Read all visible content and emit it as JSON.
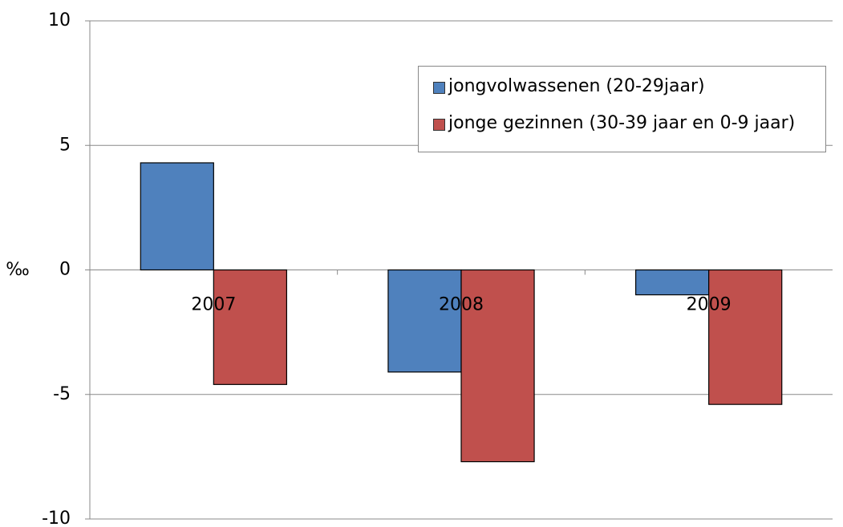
{
  "chart_data": {
    "type": "bar",
    "y_label": "‰",
    "categories": [
      "2007",
      "2008",
      "2009"
    ],
    "series": [
      {
        "name": "jongvolwassenen (20-29jaar)",
        "color": "#4f81bd",
        "values": [
          4.3,
          -4.1,
          -1.0
        ]
      },
      {
        "name": "jonge gezinnen (30-39 jaar en 0-9 jaar)",
        "color": "#c0504d",
        "values": [
          -4.6,
          -7.7,
          -5.4
        ]
      }
    ],
    "ylim": [
      -10,
      10
    ],
    "yticks": [
      -10,
      -5,
      0,
      5,
      10
    ],
    "grid": true,
    "legend": "upper right"
  }
}
